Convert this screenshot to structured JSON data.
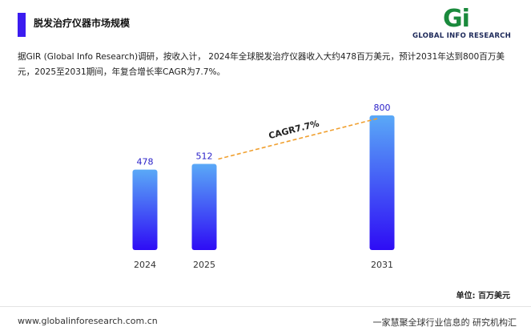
{
  "header": {
    "title": "脱发治疗仪器市场规模",
    "accent_color": "#3b1cf0"
  },
  "logo": {
    "mark": "Gi",
    "text": "GLOBAL INFO RESEARCH"
  },
  "description": {
    "line1": "据GIR (Global Info Research)调研，按收入计， 2024年全球脱发治疗仪器收入大约478百万美元，预计2031年达到800百万美",
    "line2": "元，2025至2031期间，年复合增长率CAGR为7.7%。"
  },
  "chart_data": {
    "type": "bar",
    "categories": [
      "2024",
      "2025",
      "2031"
    ],
    "values": [
      478,
      512,
      800
    ],
    "ylabel": "",
    "unit_label": "单位: 百万美元",
    "annotation": {
      "text": "CAGR7.7%",
      "from": "2025",
      "to": "2031"
    },
    "colors": {
      "bar_top": "#5aa9f7",
      "bar_bottom": "#2e0cf5",
      "label": "#2a20c8",
      "trend": "#f0a030"
    }
  },
  "footer": {
    "website": "www.globalinforesearch.com.cn",
    "slogan": "一家慧聚全球行业信息的 研究机构汇"
  }
}
